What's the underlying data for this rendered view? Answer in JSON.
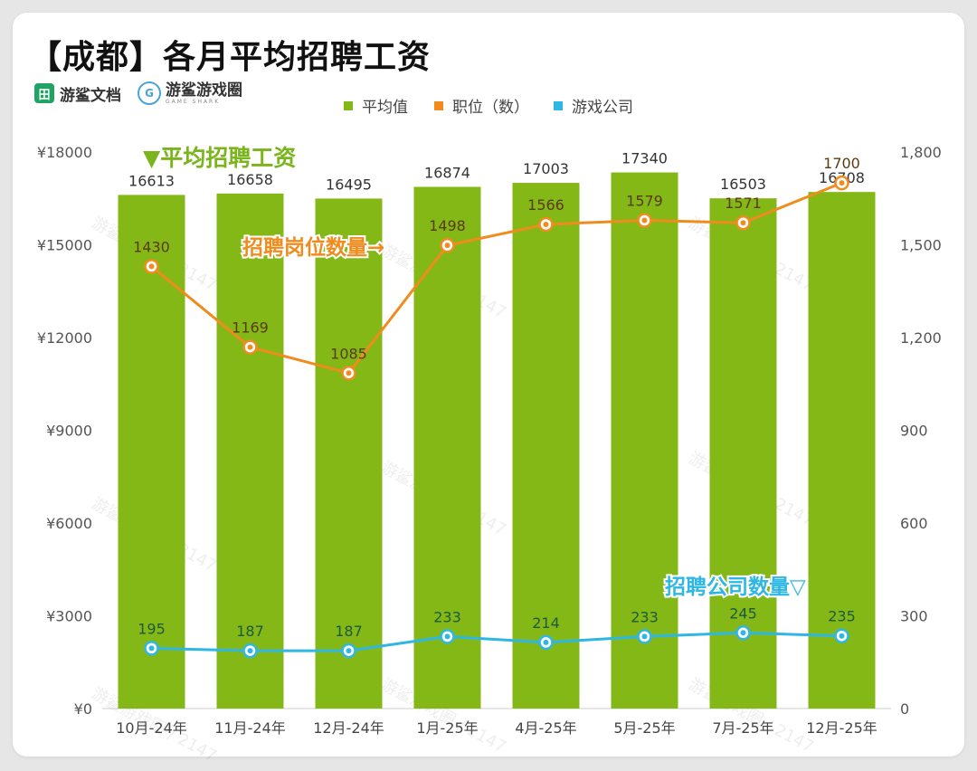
{
  "title": "【成都】各月平均招聘工资",
  "logos": {
    "doc": "游鲨文档",
    "doc_icon": "田",
    "game": "游鲨游戏圈",
    "game_sub": "GAME SHARK",
    "game_icon": "G"
  },
  "legend": [
    {
      "label": "平均值",
      "color": "#84b817"
    },
    {
      "label": "职位（数）",
      "color": "#f08c1e"
    },
    {
      "label": "游戏公司",
      "color": "#2eb7e4"
    }
  ],
  "annotations": {
    "salary": "▼平均招聘工资",
    "positions": "招聘岗位数量→",
    "companies": "招聘公司数量▽"
  },
  "watermark": "游鲨游戏圈 / 2147",
  "chart_data": {
    "type": "bar",
    "categories": [
      "10月-24年",
      "11月-24年",
      "12月-24年",
      "1月-25年",
      "4月-25年",
      "5月-25年",
      "7月-25年",
      "12月-25年"
    ],
    "series": [
      {
        "name": "平均值",
        "type": "bar",
        "axis": "left",
        "values": [
          16613,
          16658,
          16495,
          16874,
          17003,
          17340,
          16503,
          16708
        ]
      },
      {
        "name": "职位（数）",
        "type": "line",
        "axis": "right",
        "values": [
          1430,
          1169,
          1085,
          1498,
          1566,
          1579,
          1571,
          1700
        ]
      },
      {
        "name": "游戏公司",
        "type": "line",
        "axis": "right",
        "values": [
          195,
          187,
          187,
          233,
          214,
          233,
          245,
          235
        ]
      }
    ],
    "y_left": {
      "ylim": [
        0,
        18000
      ],
      "ticks": [
        "¥0",
        "¥3000",
        "¥6000",
        "¥9000",
        "¥12000",
        "¥15000",
        "¥18000"
      ]
    },
    "y_right": {
      "ylim": [
        0,
        1800
      ],
      "ticks": [
        "0",
        "300",
        "600",
        "900",
        "1,200",
        "1,500",
        "1,800"
      ]
    }
  }
}
